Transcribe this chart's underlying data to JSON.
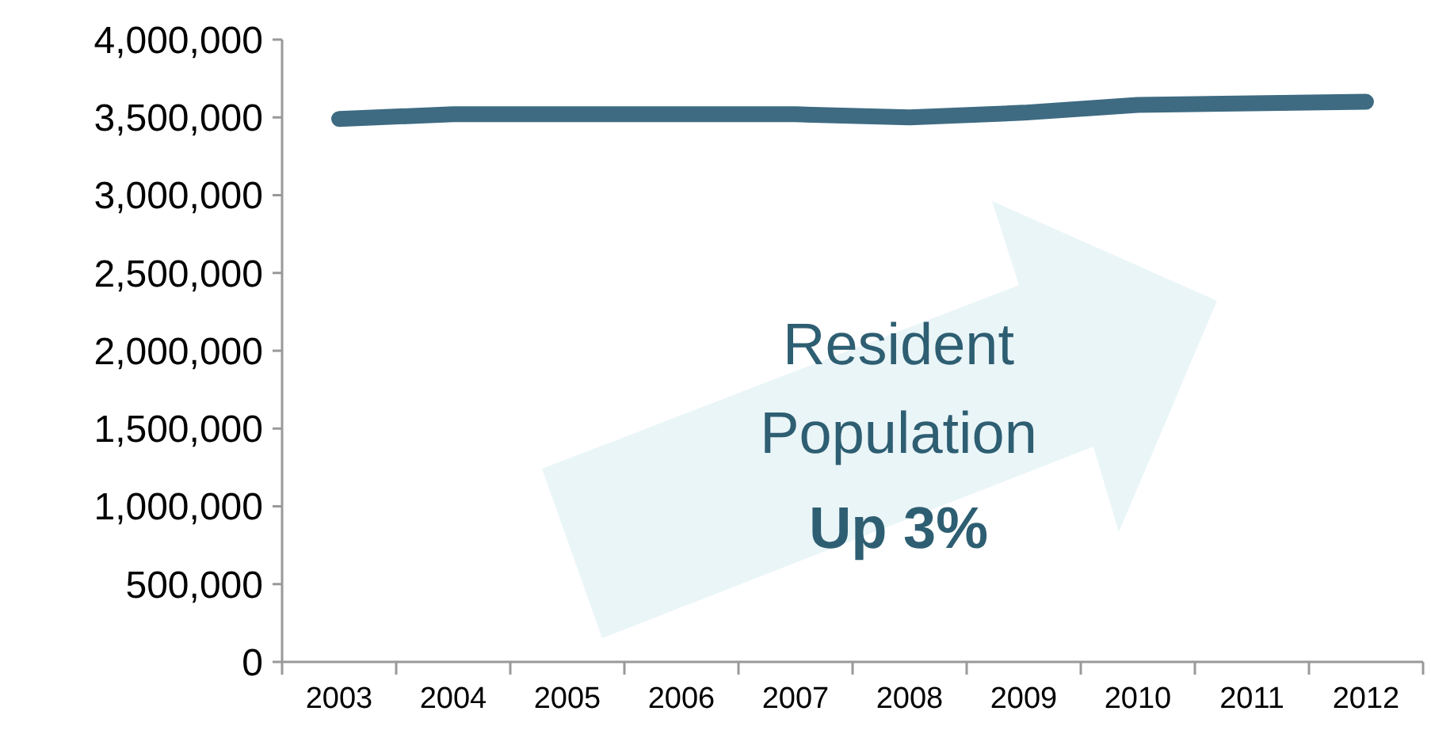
{
  "chart_data": {
    "type": "line",
    "categories": [
      "2003",
      "2004",
      "2005",
      "2006",
      "2007",
      "2008",
      "2009",
      "2010",
      "2011",
      "2012"
    ],
    "series": [
      {
        "color": "#3e6b82",
        "values": [
          3490000,
          3520000,
          3520000,
          3520000,
          3520000,
          3500000,
          3530000,
          3580000,
          3590000,
          3600000
        ]
      }
    ],
    "ylim": [
      0,
      4000000
    ],
    "yticks": [
      {
        "value": 0,
        "label": "0"
      },
      {
        "value": 500000,
        "label": "500,000"
      },
      {
        "value": 1000000,
        "label": "1,000,000"
      },
      {
        "value": 1500000,
        "label": "1,500,000"
      },
      {
        "value": 2000000,
        "label": "2,000,000"
      },
      {
        "value": 2500000,
        "label": "2,500,000"
      },
      {
        "value": 3000000,
        "label": "3,000,000"
      },
      {
        "value": 3500000,
        "label": "3,500,000"
      },
      {
        "value": 4000000,
        "label": "4,000,000"
      }
    ],
    "annotations": [
      "Resident Population",
      "Up 3%"
    ],
    "grid": false,
    "line_style": "solid"
  }
}
